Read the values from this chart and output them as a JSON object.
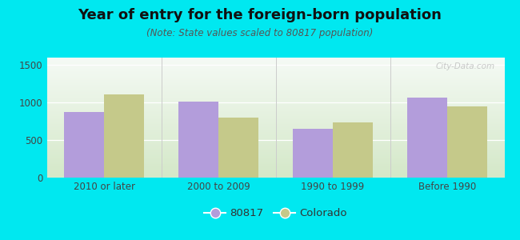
{
  "title": "Year of entry for the foreign-born population",
  "subtitle": "(Note: State values scaled to 80817 population)",
  "categories": [
    "2010 or later",
    "2000 to 2009",
    "1990 to 1999",
    "Before 1990"
  ],
  "values_80817": [
    880,
    1010,
    655,
    1065
  ],
  "values_colorado": [
    1105,
    800,
    735,
    950
  ],
  "bar_color_80817": "#b39ddb",
  "bar_color_colorado": "#c5c98a",
  "ylim": [
    0,
    1600
  ],
  "yticks": [
    0,
    500,
    1000,
    1500
  ],
  "background_outer": "#00e8f0",
  "legend_label_80817": "80817",
  "legend_label_colorado": "Colorado",
  "bar_width": 0.35,
  "title_fontsize": 13,
  "subtitle_fontsize": 8.5,
  "tick_fontsize": 8.5,
  "legend_fontsize": 9.5,
  "gradient_top": "#f5faf5",
  "gradient_bottom": "#d4e8c8",
  "watermark_text": "City-Data.com",
  "watermark_color": "#c0c0c0"
}
